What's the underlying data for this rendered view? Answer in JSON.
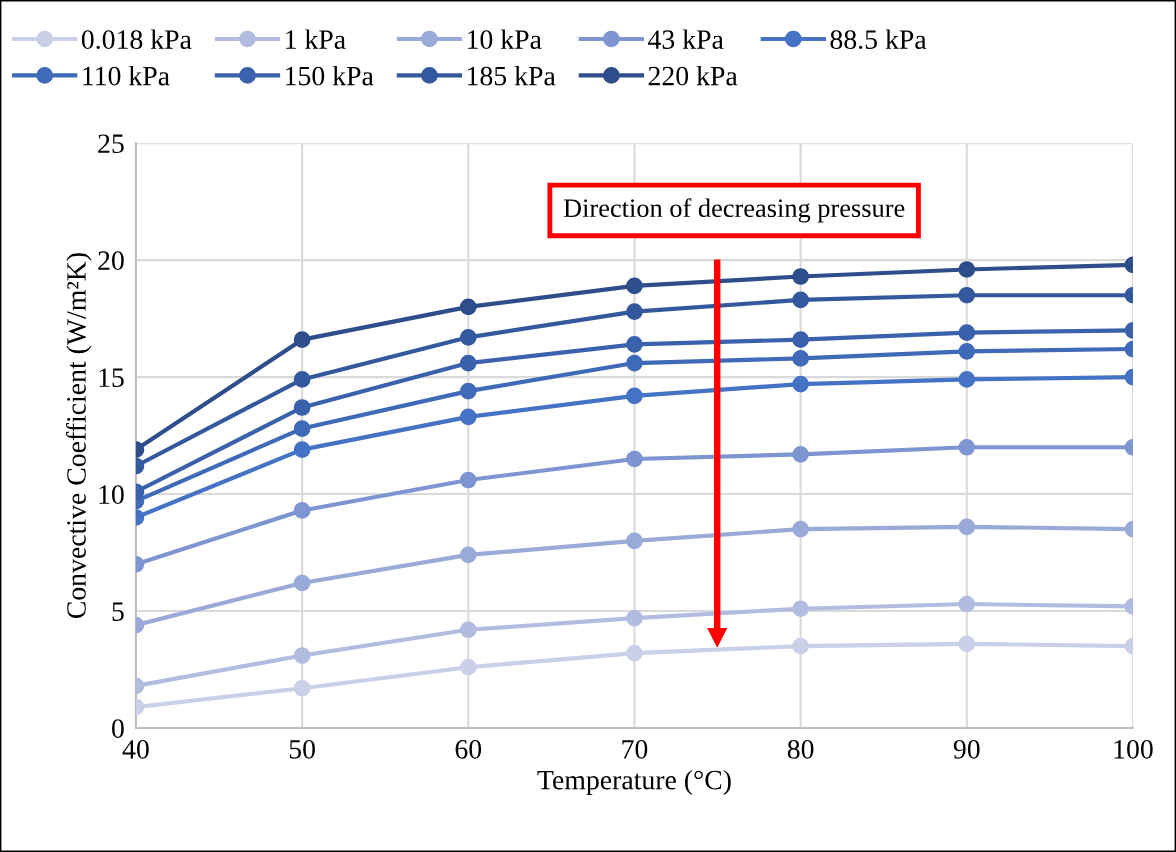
{
  "chart_data": {
    "type": "line",
    "xlabel": "Temperature (°C)",
    "ylabel": "Convective Coefficient (W/m²K)",
    "x": [
      40,
      50,
      60,
      70,
      80,
      90,
      100
    ],
    "xlim": [
      40,
      100
    ],
    "xticks": [
      40,
      50,
      60,
      70,
      80,
      90,
      100
    ],
    "ylim": [
      0,
      25
    ],
    "yticks": [
      0,
      5,
      10,
      15,
      20,
      25
    ],
    "grid": true,
    "legend": "top",
    "marker": "circle",
    "line_style": "solid",
    "annotations": [
      "Direction of decreasing pressure"
    ],
    "series": [
      {
        "name": "0.018 kPa",
        "color": "#c9d0e8",
        "values": [
          0.9,
          1.7,
          2.6,
          3.2,
          3.5,
          3.6,
          3.5
        ]
      },
      {
        "name": "1 kPa",
        "color": "#b1bce0",
        "values": [
          1.8,
          3.1,
          4.2,
          4.7,
          5.1,
          5.3,
          5.2
        ]
      },
      {
        "name": "10 kPa",
        "color": "#9aaad8",
        "values": [
          4.4,
          6.2,
          7.4,
          8.0,
          8.5,
          8.6,
          8.5
        ]
      },
      {
        "name": "43 kPa",
        "color": "#7d95d0",
        "values": [
          7.0,
          9.3,
          10.6,
          11.5,
          11.7,
          12.0,
          12.0
        ]
      },
      {
        "name": "88.5 kPa",
        "color": "#4472c4",
        "values": [
          9.0,
          11.9,
          13.3,
          14.2,
          14.7,
          14.9,
          15.0
        ]
      },
      {
        "name": "110 kPa",
        "color": "#3f6ab8",
        "values": [
          9.7,
          12.8,
          14.4,
          15.6,
          15.8,
          16.1,
          16.2
        ]
      },
      {
        "name": "150 kPa",
        "color": "#3a61ab",
        "values": [
          10.1,
          13.7,
          15.6,
          16.4,
          16.6,
          16.9,
          17.0
        ]
      },
      {
        "name": "185 kPa",
        "color": "#33589d",
        "values": [
          11.2,
          14.9,
          16.7,
          17.8,
          18.3,
          18.5,
          18.5
        ]
      },
      {
        "name": "220 kPa",
        "color": "#2d4e8a",
        "values": [
          11.9,
          16.6,
          18.0,
          18.9,
          19.3,
          19.6,
          19.8
        ]
      }
    ]
  }
}
